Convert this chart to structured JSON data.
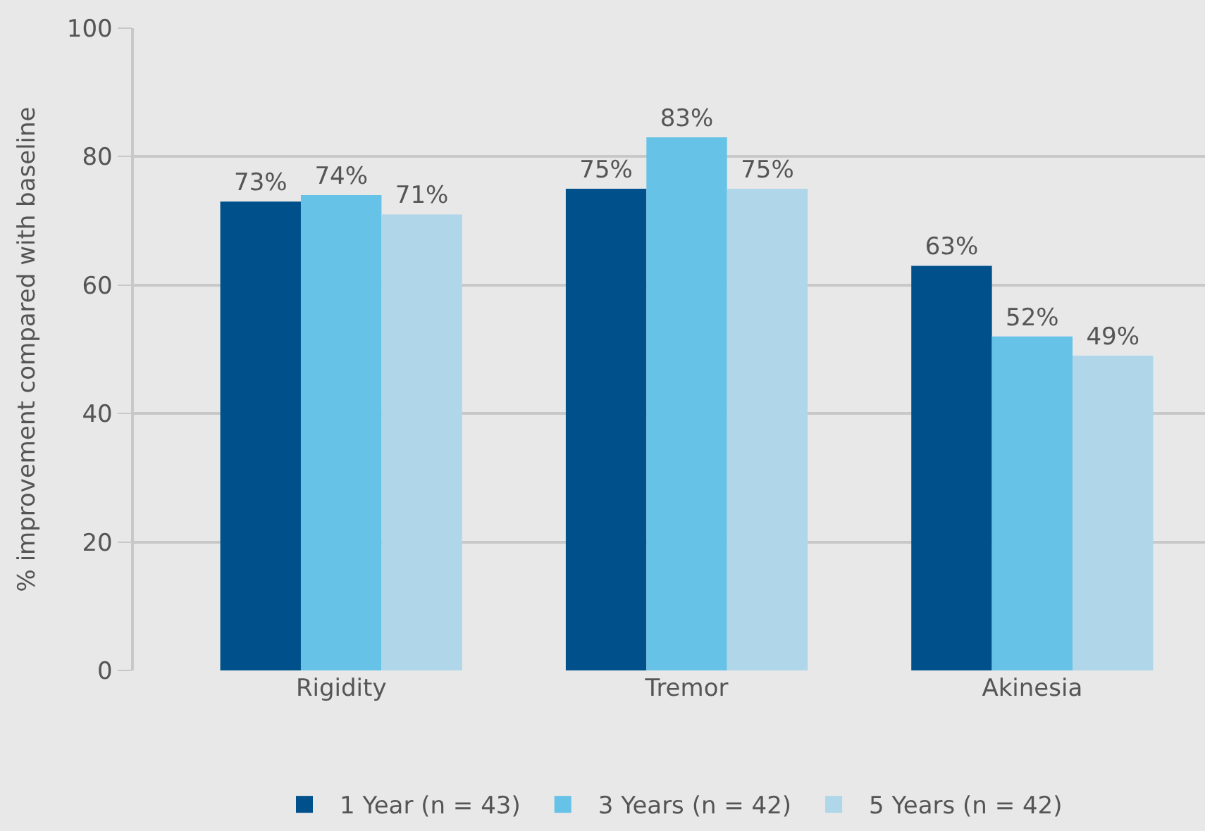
{
  "chart_data": {
    "type": "bar",
    "ylabel": "% improvement compared with baseline",
    "categories": [
      "Rigidity",
      "Tremor",
      "Akinesia"
    ],
    "series": [
      {
        "name": "1 Year (n = 43)",
        "color": "#00518b",
        "values": [
          73,
          75,
          63
        ],
        "value_labels": [
          "73%",
          "75%",
          "63%"
        ]
      },
      {
        "name": "3 Years (n = 42)",
        "color": "#66c2e7",
        "values": [
          74,
          83,
          52
        ],
        "value_labels": [
          "74%",
          "83%",
          "52%"
        ]
      },
      {
        "name": "5 Years (n = 42)",
        "color": "#b0d6e9",
        "values": [
          71,
          75,
          49
        ],
        "value_labels": [
          "71%",
          "75%",
          "49%"
        ]
      }
    ],
    "ylim": [
      0,
      100
    ],
    "yticks": [
      0,
      20,
      40,
      60,
      80,
      100
    ],
    "grid": "y",
    "legend": "bottom"
  }
}
